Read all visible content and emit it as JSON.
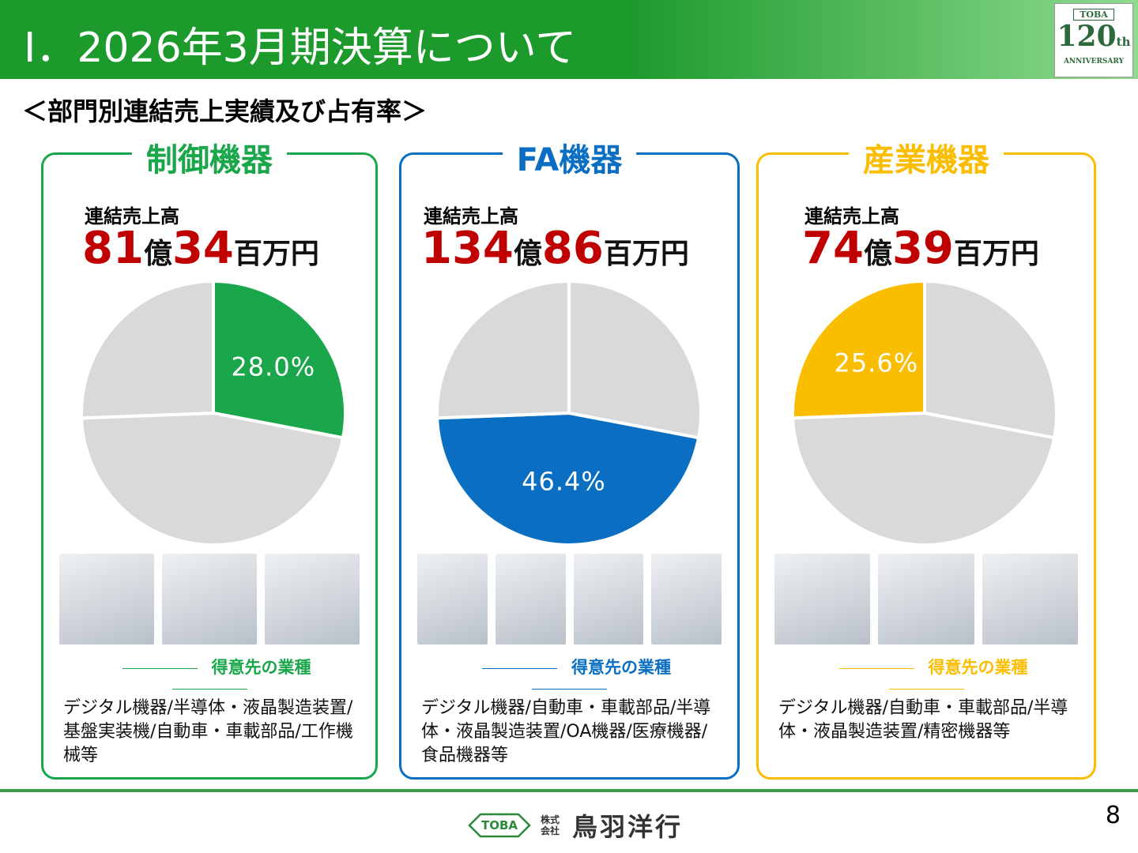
{
  "header": {
    "title": "Ⅰ．2026年3月期決算について",
    "logo": {
      "brand": "TOBA",
      "number": "120",
      "suffix": "th",
      "caption": "ANNIVERSARY"
    }
  },
  "subtitle": "＜部門別連結売上実績及び占有率＞",
  "panels": [
    {
      "title": "制御機器",
      "sales_label": "連結売上高",
      "sales": {
        "oku": 81,
        "oku_unit": "億",
        "million": 34,
        "million_unit": "百万円"
      },
      "customers_heading": "得意先の業種",
      "customers": "デジタル機器/半導体・液晶製造装置/基盤実装機/自動車・車載部品/工作機械等"
    },
    {
      "title": "FA機器",
      "sales_label": "連結売上高",
      "sales": {
        "oku": 134,
        "oku_unit": "億",
        "million": 86,
        "million_unit": "百万円"
      },
      "customers_heading": "得意先の業種",
      "customers": "デジタル機器/自動車・車載部品/半導体・液晶製造装置/OA機器/医療機器/食品機器等"
    },
    {
      "title": "産業機器",
      "sales_label": "連結売上高",
      "sales": {
        "oku": 74,
        "oku_unit": "億",
        "million": 39,
        "million_unit": "百万円"
      },
      "customers_heading": "得意先の業種",
      "customers": "デジタル機器/自動車・車載部品/半導体・液晶製造装置/精密機器等"
    }
  ],
  "chart_data": [
    {
      "type": "pie",
      "values": [
        28.0,
        46.4,
        25.6
      ],
      "value_labels": [
        "28.0%",
        null,
        null
      ],
      "colors": [
        "#1aa64a",
        "#d9d9d9",
        "#d9d9d9"
      ]
    },
    {
      "type": "pie",
      "values": [
        28.0,
        46.4,
        25.6
      ],
      "value_labels": [
        null,
        "46.4%",
        null
      ],
      "colors": [
        "#d9d9d9",
        "#0a6fc2",
        "#d9d9d9"
      ]
    },
    {
      "type": "pie",
      "values": [
        28.0,
        46.4,
        25.6
      ],
      "value_labels": [
        null,
        null,
        "25.6%"
      ],
      "colors": [
        "#d9d9d9",
        "#d9d9d9",
        "#fbbd00"
      ]
    }
  ],
  "footer": {
    "company_type": "株式会社",
    "company": "鳥羽洋行",
    "brand": "TOBA",
    "page": 8
  }
}
